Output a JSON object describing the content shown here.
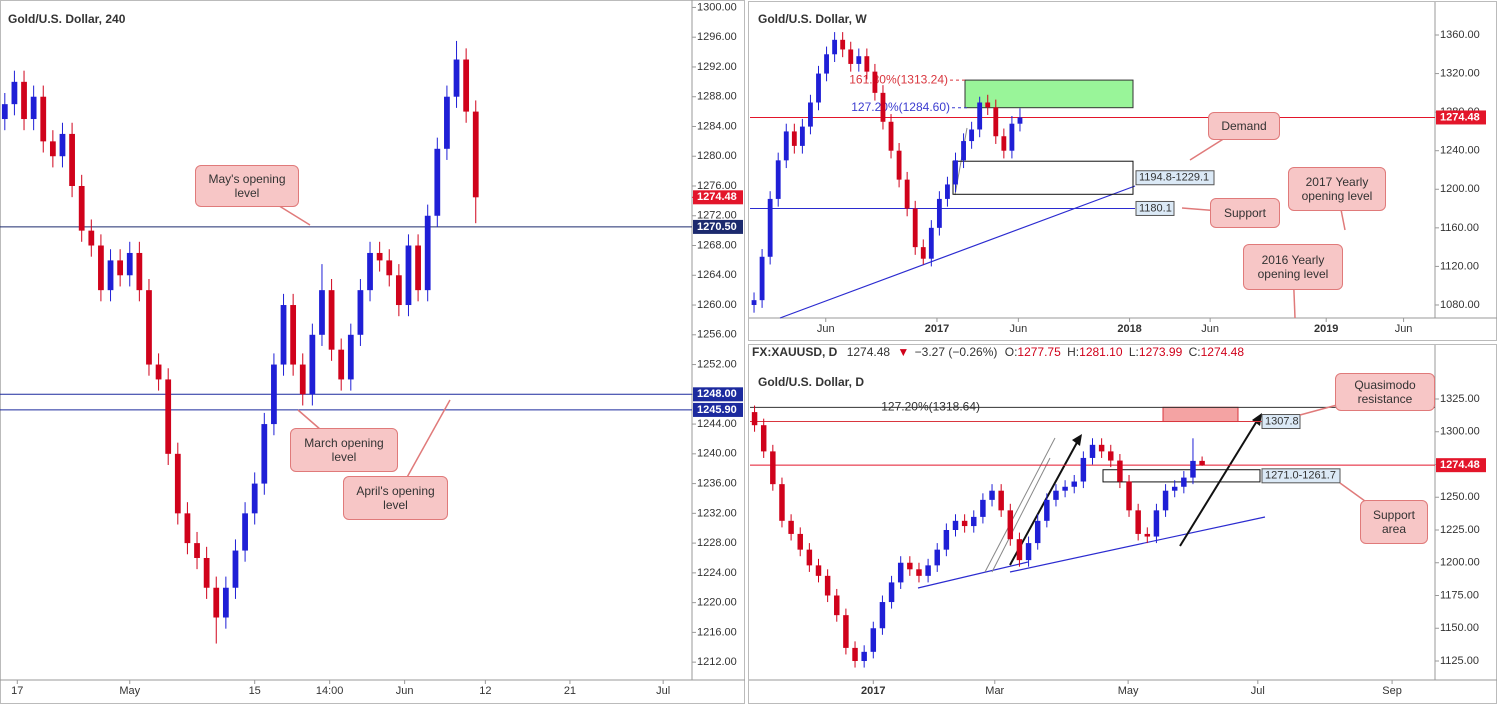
{
  "chart_data": [
    {
      "type": "candlestick",
      "title": "Gold/U.S. Dollar, 240",
      "xlim": [
        0,
        72
      ],
      "xticks": [
        {
          "value": 1.8,
          "label": "17"
        },
        {
          "value": 13.5,
          "label": "May"
        },
        {
          "value": 26.5,
          "label": "15"
        },
        {
          "value": 34.3,
          "label": "14:00"
        },
        {
          "value": 42.1,
          "label": "Jun"
        },
        {
          "value": 50.5,
          "label": "12"
        },
        {
          "value": 59.3,
          "label": "21"
        },
        {
          "value": 69.0,
          "label": "Jul"
        }
      ],
      "ylim": [
        1209.6,
        1301
      ],
      "yticks": [
        {
          "value": 1212,
          "label": "1212.00"
        },
        {
          "value": 1216,
          "label": "1216.00"
        },
        {
          "value": 1220,
          "label": "1220.00"
        },
        {
          "value": 1224,
          "label": "1224.00"
        },
        {
          "value": 1228,
          "label": "1228.00"
        },
        {
          "value": 1232,
          "label": "1232.00"
        },
        {
          "value": 1236,
          "label": "1236.00"
        },
        {
          "value": 1240,
          "label": "1240.00"
        },
        {
          "value": 1244,
          "label": "1244.00"
        },
        {
          "value": 1248,
          "label": "1248.00"
        },
        {
          "value": 1252,
          "label": "1252.00"
        },
        {
          "value": 1256,
          "label": "1256.00"
        },
        {
          "value": 1260,
          "label": "1260.00"
        },
        {
          "value": 1264,
          "label": "1264.00"
        },
        {
          "value": 1268,
          "label": "1268.00"
        },
        {
          "value": 1272,
          "label": "1272.00"
        },
        {
          "value": 1276,
          "label": "1276.00"
        },
        {
          "value": 1280,
          "label": "1280.00"
        },
        {
          "value": 1284,
          "label": "1284.00"
        },
        {
          "value": 1288,
          "label": "1288.00"
        },
        {
          "value": 1292,
          "label": "1292.00"
        },
        {
          "value": 1296,
          "label": "1296.00"
        },
        {
          "value": 1300,
          "label": "1300.00"
        }
      ],
      "up_color": "#1f1fd6",
      "down_color": "#d0021b",
      "candles": [
        [
          1285,
          1288.5,
          1283.5,
          1287
        ],
        [
          1287,
          1291.5,
          1285.5,
          1290
        ],
        [
          1290,
          1291.5,
          1283.5,
          1285
        ],
        [
          1285,
          1289.5,
          1283.5,
          1288
        ],
        [
          1288,
          1289.5,
          1280.5,
          1282
        ],
        [
          1282,
          1283.5,
          1278.5,
          1280
        ],
        [
          1280,
          1284.5,
          1278.5,
          1283
        ],
        [
          1283,
          1284.5,
          1274.5,
          1276
        ],
        [
          1276,
          1277.5,
          1268.5,
          1270
        ],
        [
          1270,
          1271.5,
          1266.5,
          1268
        ],
        [
          1268,
          1269.5,
          1260.5,
          1262
        ],
        [
          1262,
          1267.5,
          1260.5,
          1266
        ],
        [
          1266,
          1267.5,
          1262.5,
          1264
        ],
        [
          1264,
          1268.5,
          1262.5,
          1267
        ],
        [
          1267,
          1268.5,
          1260.5,
          1262
        ],
        [
          1262,
          1263.5,
          1250.5,
          1252
        ],
        [
          1252,
          1253.5,
          1248.5,
          1250
        ],
        [
          1250,
          1251.5,
          1238.5,
          1240
        ],
        [
          1240,
          1241.5,
          1230.5,
          1232
        ],
        [
          1232,
          1233.5,
          1226.5,
          1228
        ],
        [
          1228,
          1229.5,
          1224.5,
          1226
        ],
        [
          1226,
          1227.5,
          1220.5,
          1222
        ],
        [
          1222,
          1223.5,
          1214.5,
          1218
        ],
        [
          1218,
          1223.5,
          1216.5,
          1222
        ],
        [
          1222,
          1228.5,
          1220.5,
          1227
        ],
        [
          1227,
          1233.5,
          1225.5,
          1232
        ],
        [
          1232,
          1237.5,
          1230.5,
          1236
        ],
        [
          1236,
          1245.5,
          1234.5,
          1244
        ],
        [
          1244,
          1253.5,
          1242.5,
          1252
        ],
        [
          1252,
          1261.5,
          1250.5,
          1260
        ],
        [
          1260,
          1261.5,
          1250.5,
          1252
        ],
        [
          1252,
          1253.5,
          1246.5,
          1248
        ],
        [
          1248,
          1257.5,
          1246.5,
          1256
        ],
        [
          1256,
          1265.5,
          1254.5,
          1262
        ],
        [
          1262,
          1263.5,
          1252.5,
          1254
        ],
        [
          1254,
          1255.5,
          1248.5,
          1250
        ],
        [
          1250,
          1257.5,
          1248.5,
          1256
        ],
        [
          1256,
          1263.5,
          1254.5,
          1262
        ],
        [
          1262,
          1268.5,
          1260.5,
          1267
        ],
        [
          1267,
          1268.5,
          1264.5,
          1266
        ],
        [
          1266,
          1267.5,
          1262.5,
          1264
        ],
        [
          1264,
          1265.5,
          1258.5,
          1260
        ],
        [
          1260,
          1269.5,
          1258.5,
          1268
        ],
        [
          1268,
          1269.5,
          1260.5,
          1262
        ],
        [
          1262,
          1273.5,
          1260.5,
          1272
        ],
        [
          1272,
          1282.5,
          1270.5,
          1281
        ],
        [
          1281,
          1289.5,
          1279.5,
          1288
        ],
        [
          1288,
          1295.5,
          1286.5,
          1293
        ],
        [
          1293,
          1294.5,
          1284.5,
          1286
        ],
        [
          1286,
          1287.5,
          1271,
          1274.48
        ]
      ],
      "levels": [
        {
          "value": 1274.48,
          "label": "1274.48",
          "color": "#e3152a",
          "style": "tag"
        },
        {
          "value": 1270.5,
          "label": "1270.50",
          "color": "#1c2a6e",
          "style": "tag"
        },
        {
          "value": 1248.0,
          "label": "1248.00",
          "color": "#1c2a9e",
          "style": "tag"
        },
        {
          "value": 1245.9,
          "label": "1245.90",
          "color": "#1c2a9e",
          "style": "tag"
        }
      ],
      "callouts": [
        "May's opening level",
        "March opening level",
        "April's opening level"
      ]
    },
    {
      "type": "candlestick",
      "title": "Gold/U.S. Dollar, W",
      "xlim": [
        0,
        85
      ],
      "xticks": [
        {
          "value": 9.4,
          "label": "Jun"
        },
        {
          "value": 23.2,
          "label": "2017"
        },
        {
          "value": 33.3,
          "label": "Jun"
        },
        {
          "value": 47.1,
          "label": "2018"
        },
        {
          "value": 57.1,
          "label": "Jun"
        },
        {
          "value": 71.5,
          "label": "2019"
        },
        {
          "value": 81.1,
          "label": "Jun"
        }
      ],
      "ylim": [
        1066.5,
        1388
      ],
      "yticks": [
        {
          "value": 1080,
          "label": "1080.00"
        },
        {
          "value": 1120,
          "label": "1120.00"
        },
        {
          "value": 1160,
          "label": "1160.00"
        },
        {
          "value": 1200,
          "label": "1200.00"
        },
        {
          "value": 1240,
          "label": "1240.00"
        },
        {
          "value": 1280,
          "label": "1280.00"
        },
        {
          "value": 1320,
          "label": "1320.00"
        },
        {
          "value": 1360,
          "label": "1360.00"
        }
      ],
      "up_color": "#1f1fd6",
      "down_color": "#d0021b",
      "candles": [
        [
          1080,
          1093,
          1072,
          1085
        ],
        [
          1085,
          1138,
          1077,
          1130
        ],
        [
          1130,
          1198,
          1122,
          1190
        ],
        [
          1190,
          1238,
          1182,
          1230
        ],
        [
          1230,
          1268,
          1222,
          1260
        ],
        [
          1260,
          1268,
          1237,
          1245
        ],
        [
          1245,
          1273,
          1237,
          1265
        ],
        [
          1265,
          1298,
          1257,
          1290
        ],
        [
          1290,
          1328,
          1282,
          1320
        ],
        [
          1320,
          1348,
          1312,
          1340
        ],
        [
          1340,
          1363,
          1332,
          1355
        ],
        [
          1355,
          1363,
          1337,
          1345
        ],
        [
          1345,
          1353,
          1322,
          1330
        ],
        [
          1330,
          1346,
          1322,
          1338
        ],
        [
          1338,
          1346,
          1314,
          1322
        ],
        [
          1322,
          1330,
          1292,
          1300
        ],
        [
          1300,
          1308,
          1262,
          1270
        ],
        [
          1270,
          1278,
          1232,
          1240
        ],
        [
          1240,
          1248,
          1202,
          1210
        ],
        [
          1210,
          1218,
          1172,
          1180
        ],
        [
          1180,
          1188,
          1132,
          1140
        ],
        [
          1140,
          1148,
          1122,
          1128
        ],
        [
          1128,
          1168,
          1120,
          1160
        ],
        [
          1160,
          1198,
          1152,
          1190
        ],
        [
          1190,
          1213,
          1182,
          1205
        ],
        [
          1205,
          1238,
          1197,
          1230
        ],
        [
          1230,
          1258,
          1222,
          1250
        ],
        [
          1250,
          1270,
          1242,
          1262
        ],
        [
          1262,
          1296,
          1254,
          1290
        ],
        [
          1290,
          1298,
          1277,
          1285
        ],
        [
          1285,
          1293,
          1247,
          1255
        ],
        [
          1255,
          1263,
          1232,
          1240
        ],
        [
          1240,
          1276,
          1232,
          1268
        ],
        [
          1268,
          1284,
          1260,
          1274.48
        ]
      ],
      "levels": [
        {
          "value": 1313.24,
          "label": "161.80%(1313.24)",
          "color": "#d9363e",
          "style": "fib"
        },
        {
          "value": 1284.6,
          "label": "127.20%(1284.60)",
          "color": "#3c3cd0",
          "style": "fib"
        },
        {
          "value": 1180.1,
          "label": "1180.1",
          "color": "#2b2bd0",
          "style": "box"
        },
        {
          "value": 1274.48,
          "label": "1274.48",
          "color": "#e3152a",
          "style": "tag"
        }
      ],
      "zones": [
        {
          "low": 1194.8,
          "high": 1229.1,
          "label": "1194.8-1229.1"
        }
      ],
      "callouts": [
        "Demand",
        "Support",
        "2017 Yearly opening level",
        "2016 Yearly opening level"
      ]
    },
    {
      "type": "candlestick",
      "title": "Gold/U.S. Dollar, D",
      "header": {
        "symbol": "FX:XAUUSD, D",
        "last": "1274.48",
        "arrow": "▼",
        "change": "−3.27 (−0.26%)",
        "ohlc": [
          {
            "label": "O:",
            "value": "1277.75"
          },
          {
            "label": "H:",
            "value": "1281.10"
          },
          {
            "label": "L:",
            "value": "1273.99"
          },
          {
            "label": "C:",
            "value": "1274.48"
          }
        ]
      },
      "xlim": [
        0,
        75
      ],
      "xticks": [
        {
          "value": 13.5,
          "label": "2017"
        },
        {
          "value": 26.8,
          "label": "Mar"
        },
        {
          "value": 41.4,
          "label": "May"
        },
        {
          "value": 55.6,
          "label": "Jul"
        },
        {
          "value": 70.3,
          "label": "Sep"
        }
      ],
      "ylim": [
        1110.5,
        1345.6
      ],
      "yticks": [
        {
          "value": 1125,
          "label": "1125.00"
        },
        {
          "value": 1150,
          "label": "1150.00"
        },
        {
          "value": 1175,
          "label": "1175.00"
        },
        {
          "value": 1200,
          "label": "1200.00"
        },
        {
          "value": 1225,
          "label": "1225.00"
        },
        {
          "value": 1250,
          "label": "1250.00"
        },
        {
          "value": 1275,
          "label": "1275.00"
        },
        {
          "value": 1300,
          "label": "1300.00"
        },
        {
          "value": 1325,
          "label": "1325.00"
        }
      ],
      "up_color": "#1f1fd6",
      "down_color": "#d0021b",
      "candles": [
        [
          1315,
          1320,
          1300,
          1305
        ],
        [
          1305,
          1310,
          1280,
          1285
        ],
        [
          1285,
          1290,
          1255,
          1260
        ],
        [
          1260,
          1265,
          1227,
          1232
        ],
        [
          1232,
          1237,
          1217,
          1222
        ],
        [
          1222,
          1227,
          1205,
          1210
        ],
        [
          1210,
          1215,
          1193,
          1198
        ],
        [
          1198,
          1203,
          1185,
          1190
        ],
        [
          1190,
          1195,
          1170,
          1175
        ],
        [
          1175,
          1180,
          1155,
          1160
        ],
        [
          1160,
          1165,
          1130,
          1135
        ],
        [
          1135,
          1140,
          1120,
          1125
        ],
        [
          1125,
          1137,
          1120,
          1132
        ],
        [
          1132,
          1155,
          1127,
          1150
        ],
        [
          1150,
          1175,
          1145,
          1170
        ],
        [
          1170,
          1190,
          1165,
          1185
        ],
        [
          1185,
          1205,
          1180,
          1200
        ],
        [
          1200,
          1205,
          1190,
          1195
        ],
        [
          1195,
          1200,
          1185,
          1190
        ],
        [
          1190,
          1203,
          1185,
          1198
        ],
        [
          1198,
          1215,
          1193,
          1210
        ],
        [
          1210,
          1230,
          1205,
          1225
        ],
        [
          1225,
          1237,
          1220,
          1232
        ],
        [
          1232,
          1237,
          1223,
          1228
        ],
        [
          1228,
          1240,
          1223,
          1235
        ],
        [
          1235,
          1253,
          1230,
          1248
        ],
        [
          1248,
          1260,
          1243,
          1255
        ],
        [
          1255,
          1260,
          1235,
          1240
        ],
        [
          1240,
          1245,
          1213,
          1218
        ],
        [
          1218,
          1223,
          1197,
          1202
        ],
        [
          1202,
          1220,
          1197,
          1215
        ],
        [
          1215,
          1237,
          1210,
          1232
        ],
        [
          1232,
          1253,
          1227,
          1248
        ],
        [
          1248,
          1260,
          1243,
          1255
        ],
        [
          1255,
          1263,
          1250,
          1258
        ],
        [
          1258,
          1267,
          1253,
          1262
        ],
        [
          1262,
          1285,
          1257,
          1280
        ],
        [
          1280,
          1295,
          1275,
          1290
        ],
        [
          1290,
          1295,
          1280,
          1285
        ],
        [
          1285,
          1290,
          1273,
          1278
        ],
        [
          1278,
          1283,
          1257,
          1262
        ],
        [
          1262,
          1267,
          1235,
          1240
        ],
        [
          1240,
          1245,
          1217,
          1222
        ],
        [
          1222,
          1227,
          1215,
          1220
        ],
        [
          1220,
          1245,
          1215,
          1240
        ],
        [
          1240,
          1260,
          1235,
          1255
        ],
        [
          1255,
          1263,
          1250,
          1258
        ],
        [
          1258,
          1270,
          1253,
          1265
        ],
        [
          1265,
          1295,
          1260,
          1277.75
        ],
        [
          1277.75,
          1281.1,
          1273.99,
          1274.48
        ]
      ],
      "levels": [
        {
          "value": 1318.64,
          "label": "127.20%(1318.64)",
          "color": "#333333",
          "style": "fib"
        },
        {
          "value": 1307.8,
          "label": "1307.8",
          "color": "#d9363e",
          "style": "box"
        },
        {
          "value": 1274.48,
          "label": "1274.48",
          "color": "#e3152a",
          "style": "tag"
        }
      ],
      "zones": [
        {
          "low": 1261.7,
          "high": 1271.0,
          "label": "1271.0-1261.7"
        }
      ],
      "callouts": [
        "Quasimodo resistance",
        "Support area"
      ]
    }
  ]
}
